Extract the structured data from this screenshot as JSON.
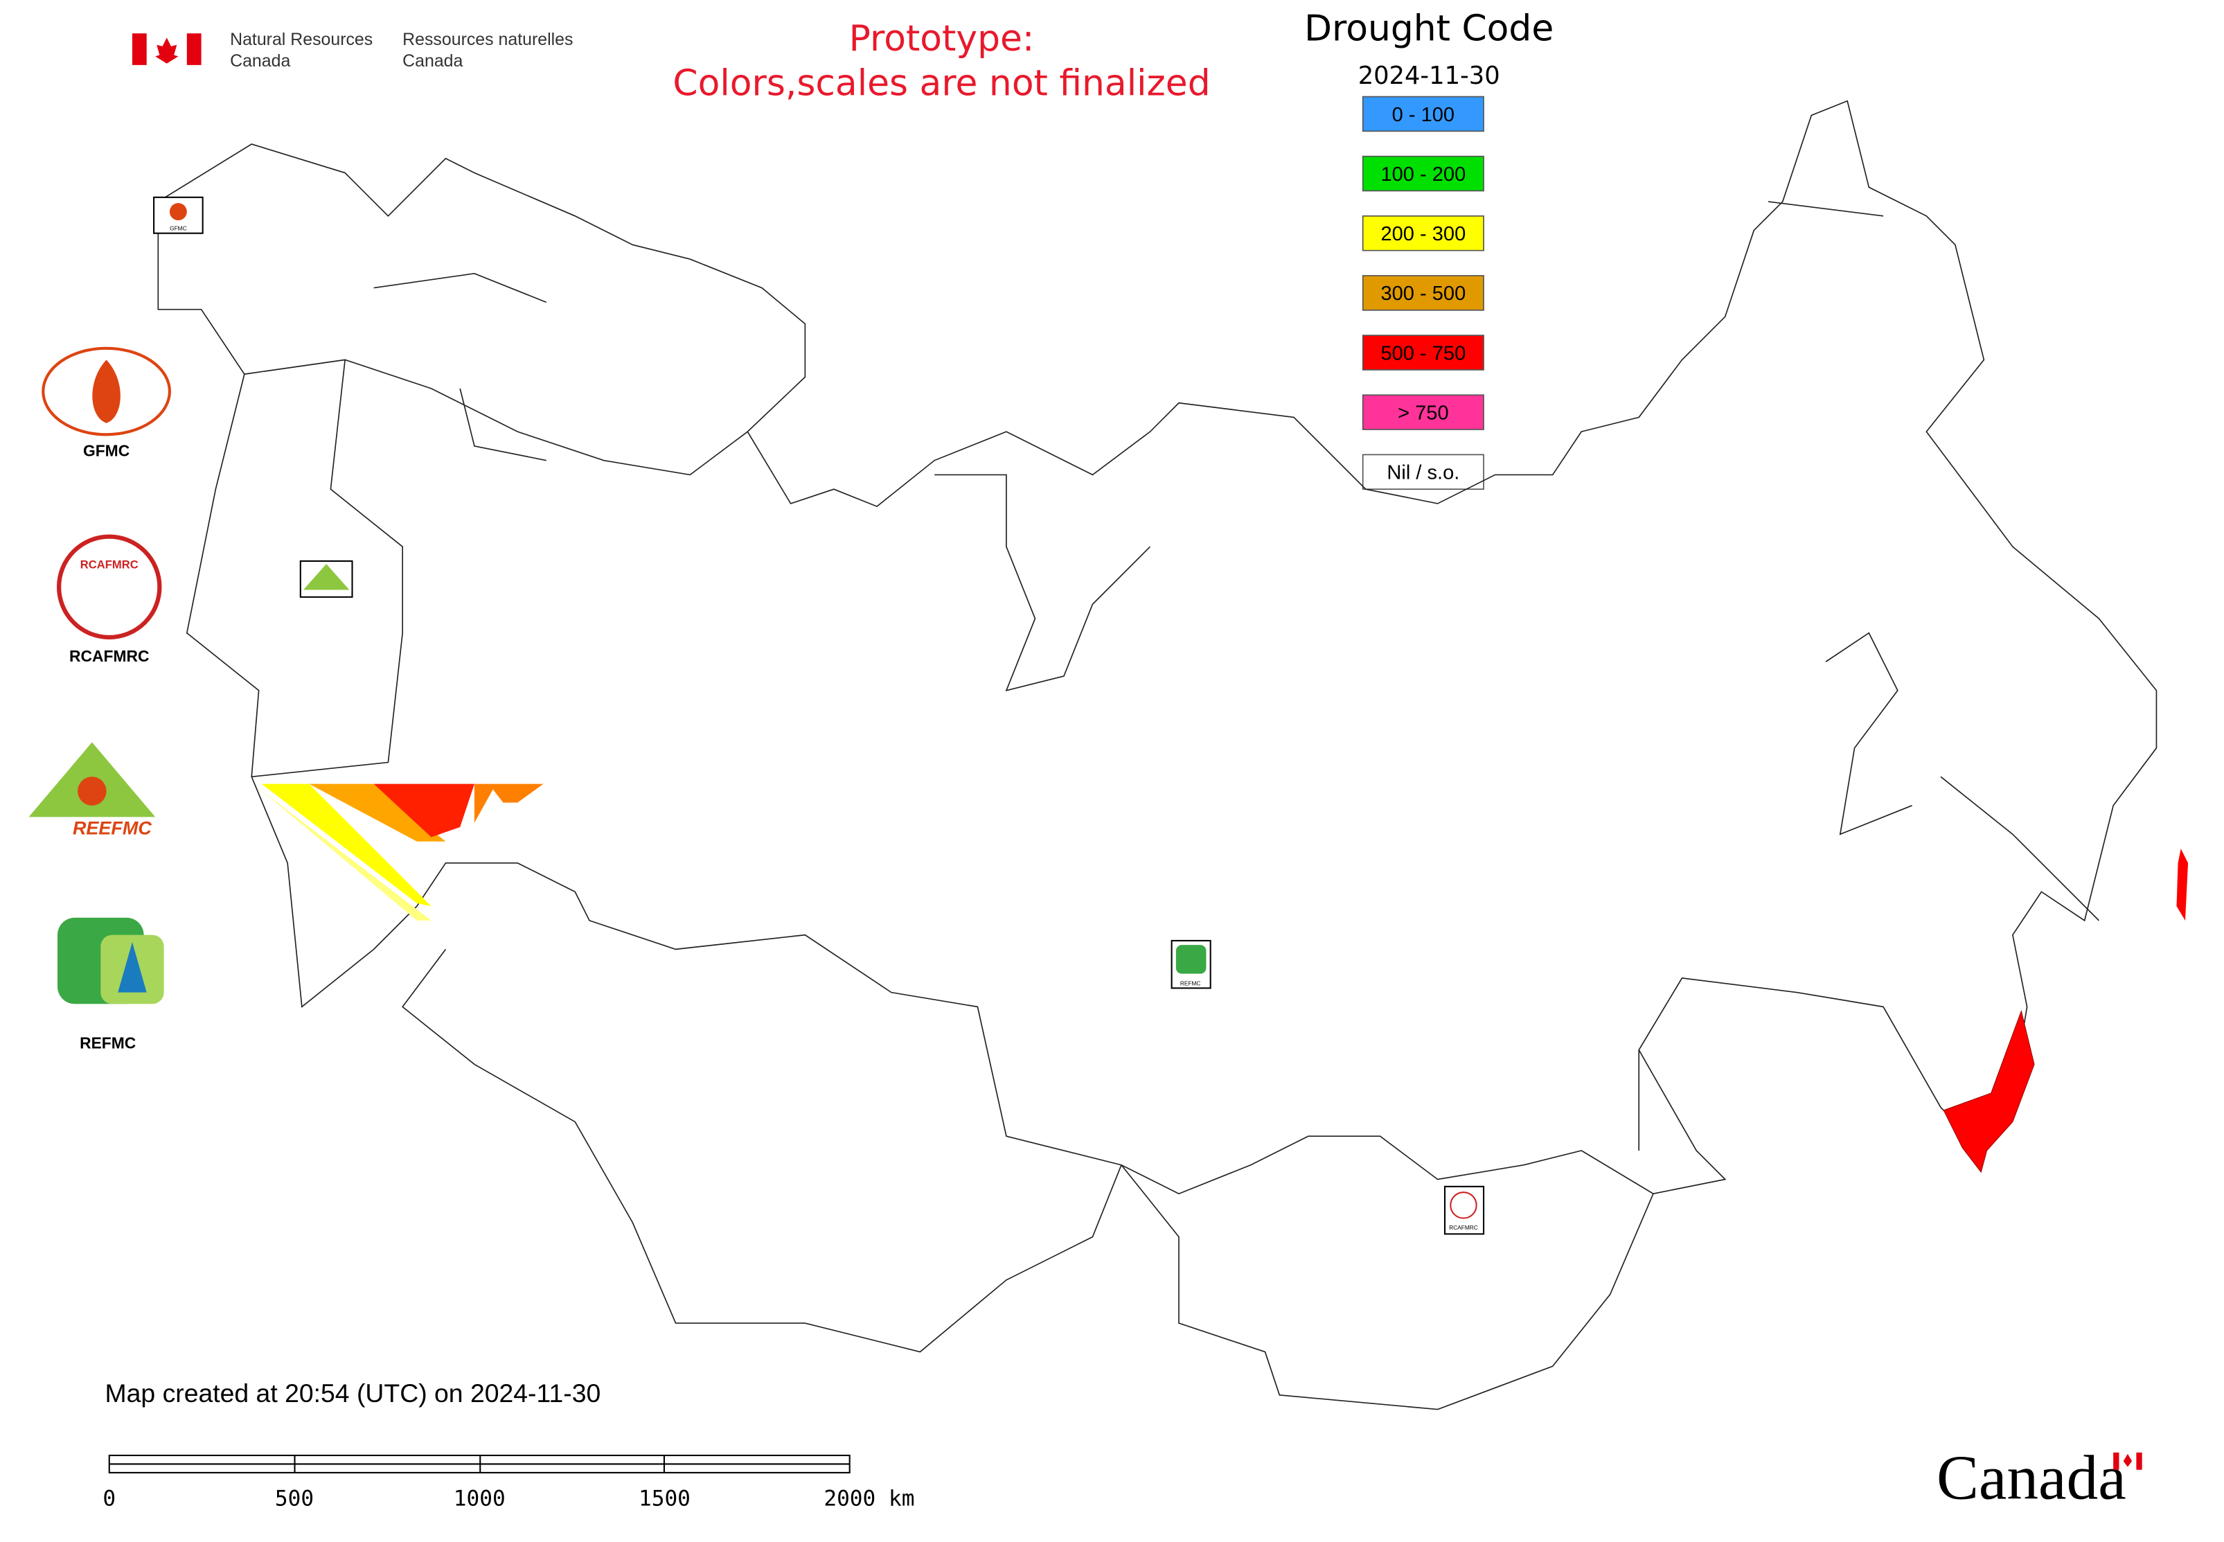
{
  "header": {
    "gov_en_1": "Natural Resources",
    "gov_en_2": "Canada",
    "gov_fr_1": "Ressources naturelles",
    "gov_fr_2": "Canada",
    "notice_1": "Prototype:",
    "notice_2": "Colors,scales are not finalized"
  },
  "title": "Drought Code",
  "date": "2024-11-30",
  "legend": [
    {
      "label": "0 - 100",
      "color": "#3399ff"
    },
    {
      "label": "100 - 200",
      "color": "#00e000"
    },
    {
      "label": "200 - 300",
      "color": "#ffff00"
    },
    {
      "label": "300 - 500",
      "color": "#e09a00"
    },
    {
      "label": "500 - 750",
      "color": "#ff0000"
    },
    {
      "label": "> 750",
      "color": "#ff3399"
    },
    {
      "label": "Nil / s.o.",
      "color": "#ffffff"
    }
  ],
  "logos": {
    "gfmc": "GFMC",
    "rcafmrc": "RCAFMRC",
    "reefmc": "REEFMC",
    "refmc": "REFMC"
  },
  "footer": {
    "created": "Map created at 20:54 (UTC) on 2024-11-30",
    "wordmark": "Canada"
  },
  "scale_bar": {
    "labels": [
      "0",
      "500",
      "1000",
      "1500",
      "2000 km"
    ]
  }
}
